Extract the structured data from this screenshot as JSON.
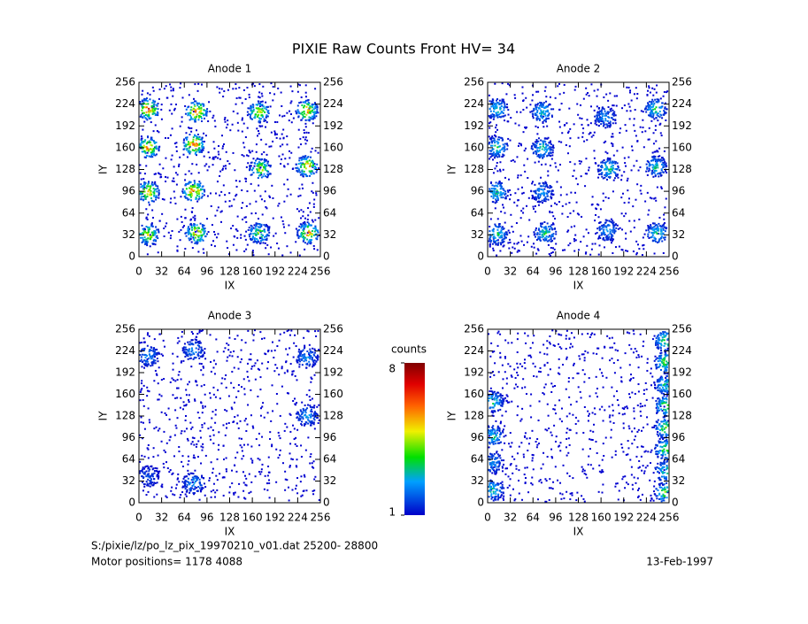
{
  "title": "PIXIE Raw Counts Front HV= 34",
  "chart_data": [
    {
      "type": "scatter",
      "title": "Anode 1",
      "x_label": "IX",
      "y_label": "IY",
      "xlim": [
        0,
        256
      ],
      "ylim": [
        0,
        256
      ],
      "xticks": [
        0,
        32,
        64,
        96,
        128,
        160,
        192,
        224,
        256
      ],
      "yticks": [
        0,
        32,
        64,
        96,
        128,
        160,
        192,
        224,
        256
      ],
      "hotspots": {
        "x": [
          12,
          80,
          168,
          236,
          12,
          76,
          170,
          236,
          12,
          76,
          12,
          80,
          168,
          238
        ],
        "y": [
          218,
          214,
          214,
          216,
          162,
          166,
          130,
          134,
          96,
          98,
          34,
          36,
          36,
          36
        ],
        "z": [
          8,
          8,
          6,
          7,
          7,
          8,
          6,
          7,
          7,
          8,
          6,
          7,
          5,
          7
        ]
      }
    },
    {
      "type": "scatter",
      "title": "Anode 2",
      "x_label": "IX",
      "y_label": "IY",
      "xlim": [
        0,
        256
      ],
      "ylim": [
        0,
        256
      ],
      "xticks": [
        0,
        32,
        64,
        96,
        128,
        160,
        192,
        224,
        256
      ],
      "yticks": [
        0,
        32,
        64,
        96,
        128,
        160,
        192,
        224,
        256
      ],
      "hotspots": {
        "x": [
          12,
          76,
          164,
          236,
          12,
          76,
          170,
          236,
          12,
          76,
          12,
          80,
          168,
          238
        ],
        "y": [
          218,
          214,
          206,
          218,
          162,
          160,
          130,
          134,
          96,
          96,
          34,
          36,
          40,
          36
        ],
        "z": [
          4,
          4,
          3,
          4,
          4,
          4,
          4,
          4,
          4,
          3,
          4,
          4,
          3,
          4
        ]
      }
    },
    {
      "type": "scatter",
      "title": "Anode 3",
      "x_label": "IX",
      "y_label": "IY",
      "xlim": [
        0,
        256
      ],
      "ylim": [
        0,
        256
      ],
      "xticks": [
        0,
        32,
        64,
        96,
        128,
        160,
        192,
        224,
        256
      ],
      "yticks": [
        0,
        32,
        64,
        96,
        128,
        160,
        192,
        224,
        256
      ],
      "hotspots": {
        "x": [
          12,
          76,
          236,
          76,
          236,
          12
        ],
        "y": [
          218,
          226,
          216,
          30,
          130,
          40
        ],
        "z": [
          3,
          3,
          3,
          3,
          3,
          2
        ]
      }
    },
    {
      "type": "scatter",
      "title": "Anode 4",
      "x_label": "IX",
      "y_label": "IY",
      "xlim": [
        0,
        256
      ],
      "ylim": [
        0,
        256
      ],
      "xticks": [
        0,
        32,
        64,
        96,
        128,
        160,
        192,
        224,
        256
      ],
      "yticks": [
        0,
        32,
        64,
        96,
        128,
        160,
        192,
        224,
        256
      ],
      "hotspots": {
        "x": [
          250,
          250,
          250,
          250,
          250,
          250,
          250,
          250,
          6,
          6,
          6,
          6
        ],
        "y": [
          240,
          208,
          176,
          144,
          112,
          80,
          48,
          16,
          150,
          100,
          60,
          20
        ],
        "z": [
          5,
          5,
          4,
          5,
          5,
          5,
          4,
          5,
          4,
          4,
          3,
          4
        ]
      }
    }
  ],
  "colorbar": {
    "label": "counts",
    "zlim": [
      1,
      8
    ],
    "ticks": [
      1,
      8
    ]
  },
  "footer": {
    "file": "S:/pixie/lz/po_lz_pix_19970210_v01.dat   25200- 28800",
    "motor": "Motor positions= 1178 4088",
    "date": "13-Feb-1997"
  }
}
